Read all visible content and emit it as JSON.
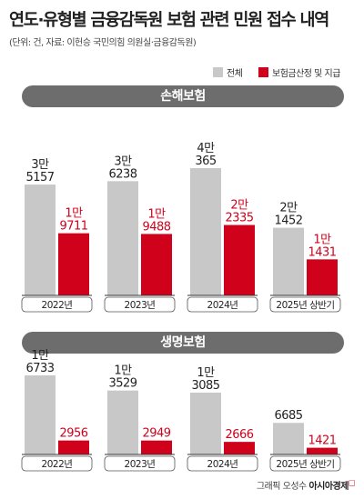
{
  "title": "연도·유형별 금융감독원 보험 관련 민원 접수 내역",
  "subtitle": "(단위: 건, 자료: 이헌승 국민의힘 의원실·금융감독원)",
  "legend": {
    "total": "전체",
    "claim": "보험금산정 및 지급"
  },
  "colors": {
    "total": "#c8c8c8",
    "claim": "#d0021b",
    "header": "#6d6d6d"
  },
  "credit": {
    "prefix": "그래픽 오성수",
    "brand": "아시아경제"
  },
  "chart_data": [
    {
      "type": "bar",
      "title": "손해보험",
      "categories": [
        "2022년",
        "2023년",
        "2024년",
        "2025년 상반기"
      ],
      "series": [
        {
          "name": "전체",
          "values": [
            35157,
            36238,
            40365,
            21452
          ],
          "labels": [
            [
              "3만",
              "5157"
            ],
            [
              "3만",
              "6238"
            ],
            [
              "4만",
              "365"
            ],
            [
              "2만",
              "1452"
            ]
          ]
        },
        {
          "name": "보험금산정 및 지급",
          "values": [
            19711,
            19488,
            22335,
            11431
          ],
          "labels": [
            [
              "1만",
              "9711"
            ],
            [
              "1만",
              "9488"
            ],
            [
              "2만",
              "2335"
            ],
            [
              "1만",
              "1431"
            ]
          ]
        }
      ]
    },
    {
      "type": "bar",
      "title": "생명보험",
      "categories": [
        "2022년",
        "2023년",
        "2024년",
        "2025년 상반기"
      ],
      "series": [
        {
          "name": "전체",
          "values": [
            16733,
            13529,
            13085,
            6685
          ],
          "labels": [
            [
              "1만",
              "6733"
            ],
            [
              "1만",
              "3529"
            ],
            [
              "1만",
              "3085"
            ],
            [
              "6685"
            ]
          ]
        },
        {
          "name": "보험금산정 및 지급",
          "values": [
            2956,
            2949,
            2666,
            1421
          ],
          "labels": [
            [
              "2956"
            ],
            [
              "2949"
            ],
            [
              "2666"
            ],
            [
              "1421"
            ]
          ]
        }
      ]
    }
  ]
}
